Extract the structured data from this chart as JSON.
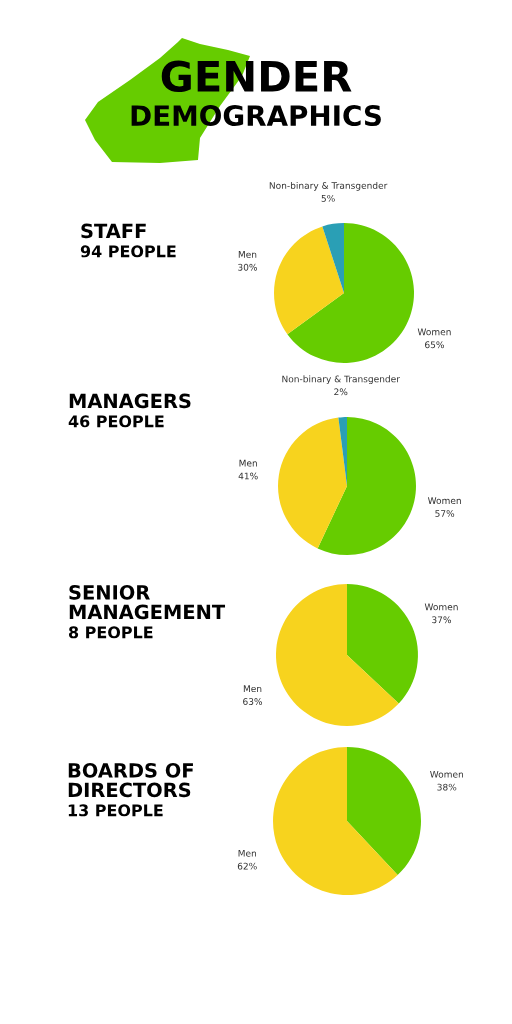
{
  "chart_data": [
    {
      "type": "other",
      "title": "GENDER",
      "subtitle": "DEMOGRAPHICS"
    },
    {
      "type": "pie",
      "title": "STAFF",
      "subtitle": "94 PEOPLE",
      "categories": [
        "Women",
        "Men",
        "Non-binary & Transgender"
      ],
      "values": [
        65,
        30,
        5
      ],
      "value_labels": [
        "65%",
        "30%",
        "5%"
      ],
      "colors": [
        "#66cc00",
        "#f7d31e",
        "#2a9fb5"
      ]
    },
    {
      "type": "pie",
      "title": "MANAGERS",
      "subtitle": "46 PEOPLE",
      "categories": [
        "Women",
        "Men",
        "Non-binary & Transgender"
      ],
      "values": [
        57,
        41,
        2
      ],
      "value_labels": [
        "57%",
        "41%",
        "2%"
      ],
      "colors": [
        "#66cc00",
        "#f7d31e",
        "#2a9fb5"
      ]
    },
    {
      "type": "pie",
      "title": "SENIOR\nMANAGEMENT",
      "subtitle": "8 PEOPLE",
      "categories": [
        "Women",
        "Men"
      ],
      "values": [
        37,
        63
      ],
      "value_labels": [
        "37%",
        "63%"
      ],
      "colors": [
        "#66cc00",
        "#f7d31e"
      ]
    },
    {
      "type": "pie",
      "title": "BOARDS OF\nDIRECTORS",
      "subtitle": "13 PEOPLE",
      "categories": [
        "Women",
        "Men"
      ],
      "values": [
        38,
        62
      ],
      "value_labels": [
        "38%",
        "62%"
      ],
      "colors": [
        "#66cc00",
        "#f7d31e"
      ]
    }
  ]
}
